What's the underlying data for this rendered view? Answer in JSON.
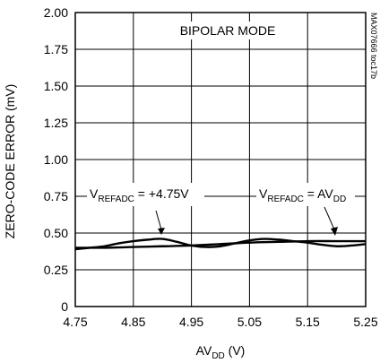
{
  "chart_data": {
    "type": "line",
    "title": "",
    "annotation_mode": "BIPOLAR MODE",
    "watermark": "MAX07666 toc17b",
    "xlabel": {
      "main": "AV",
      "sub": "DD",
      "suffix": " (V)"
    },
    "ylabel": "ZERO-CODE ERROR (mV)",
    "xlim": [
      4.75,
      5.25
    ],
    "ylim": [
      0,
      2.0
    ],
    "x_ticks": [
      "4.75",
      "4.85",
      "4.95",
      "5.05",
      "5.15",
      "5.25"
    ],
    "y_ticks": [
      "0",
      "0.25",
      "0.50",
      "0.75",
      "1.00",
      "1.25",
      "1.50",
      "1.75",
      "2.00"
    ],
    "grid": true,
    "series": [
      {
        "label_parts": {
          "main": "V",
          "sub": "REFADC",
          "suffix": " = +4.75V"
        },
        "x": [
          4.75,
          4.775,
          4.8,
          4.825,
          4.85,
          4.875,
          4.9,
          4.925,
          4.95,
          4.975,
          5.0,
          5.025,
          5.05,
          5.075,
          5.1,
          5.125,
          5.15,
          5.175,
          5.2,
          5.225,
          5.25
        ],
        "y": [
          0.39,
          0.4,
          0.41,
          0.43,
          0.445,
          0.455,
          0.46,
          0.44,
          0.415,
          0.405,
          0.41,
          0.43,
          0.45,
          0.46,
          0.455,
          0.445,
          0.435,
          0.42,
          0.41,
          0.415,
          0.425
        ]
      },
      {
        "label_parts": {
          "main": "V",
          "sub": "REFADC",
          "suffix": " = AV",
          "sub2": "DD"
        },
        "x": [
          4.75,
          4.8,
          4.85,
          4.9,
          4.95,
          5.0,
          5.05,
          5.1,
          5.15,
          5.2,
          5.25
        ],
        "y": [
          0.4,
          0.4,
          0.405,
          0.41,
          0.415,
          0.425,
          0.435,
          0.44,
          0.445,
          0.445,
          0.445
        ]
      }
    ]
  }
}
